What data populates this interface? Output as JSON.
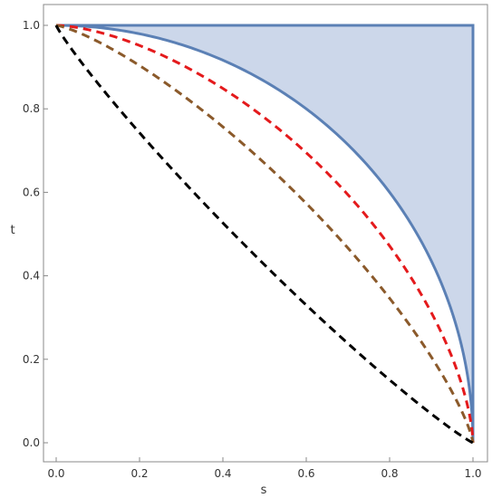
{
  "chart_data": {
    "type": "line",
    "title": "",
    "xlabel": "s",
    "ylabel": "t",
    "xlim": [
      0.0,
      1.0
    ],
    "ylim": [
      0.0,
      1.0
    ],
    "xticks": [
      "0.0",
      "0.2",
      "0.4",
      "0.6",
      "0.8",
      "1.0"
    ],
    "yticks": [
      "0.0",
      "0.2",
      "0.4",
      "0.6",
      "0.8",
      "1.0"
    ],
    "xtick_values": [
      0.0,
      0.2,
      0.4,
      0.6,
      0.8,
      1.0
    ],
    "ytick_values": [
      0.0,
      0.2,
      0.4,
      0.6,
      0.8,
      1.0
    ],
    "grid": false,
    "legend": "none",
    "region": {
      "description": "shaded region bounded by the solid curve, t = 1 and s = 1",
      "fill": "#c7d3e8",
      "edge": "#5b80b5",
      "boundary_exponent": 2
    },
    "series": [
      {
        "style": "solid",
        "color": "#5b80b5",
        "exponent": 2.0
      },
      {
        "style": "dashed",
        "color": "#e41a1c",
        "exponent": 1.6
      },
      {
        "style": "dashed",
        "color": "#8b5a2b",
        "exponent": 1.3
      },
      {
        "style": "dashed",
        "color": "#000000",
        "exponent": 0.9
      }
    ],
    "curve_family": "s^p + t^p = 1"
  }
}
